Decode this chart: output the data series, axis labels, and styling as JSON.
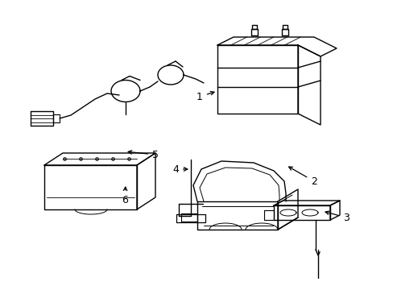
{
  "background_color": "#ffffff",
  "line_color": "#000000",
  "line_width": 1.0,
  "label_fontsize": 9,
  "fig_width": 4.89,
  "fig_height": 3.6,
  "dpi": 100
}
